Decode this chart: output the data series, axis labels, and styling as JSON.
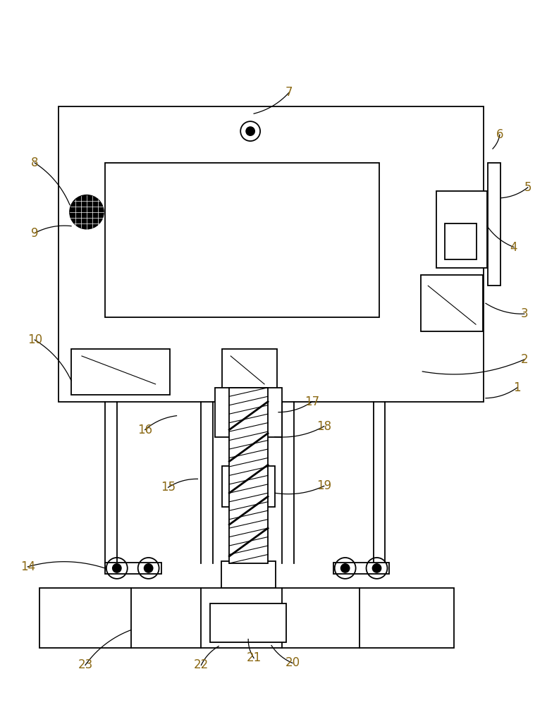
{
  "bg_color": "#ffffff",
  "line_color": "#000000",
  "label_color": "#8B6914",
  "figsize": [
    7.93,
    10.0
  ],
  "dpi": 100
}
